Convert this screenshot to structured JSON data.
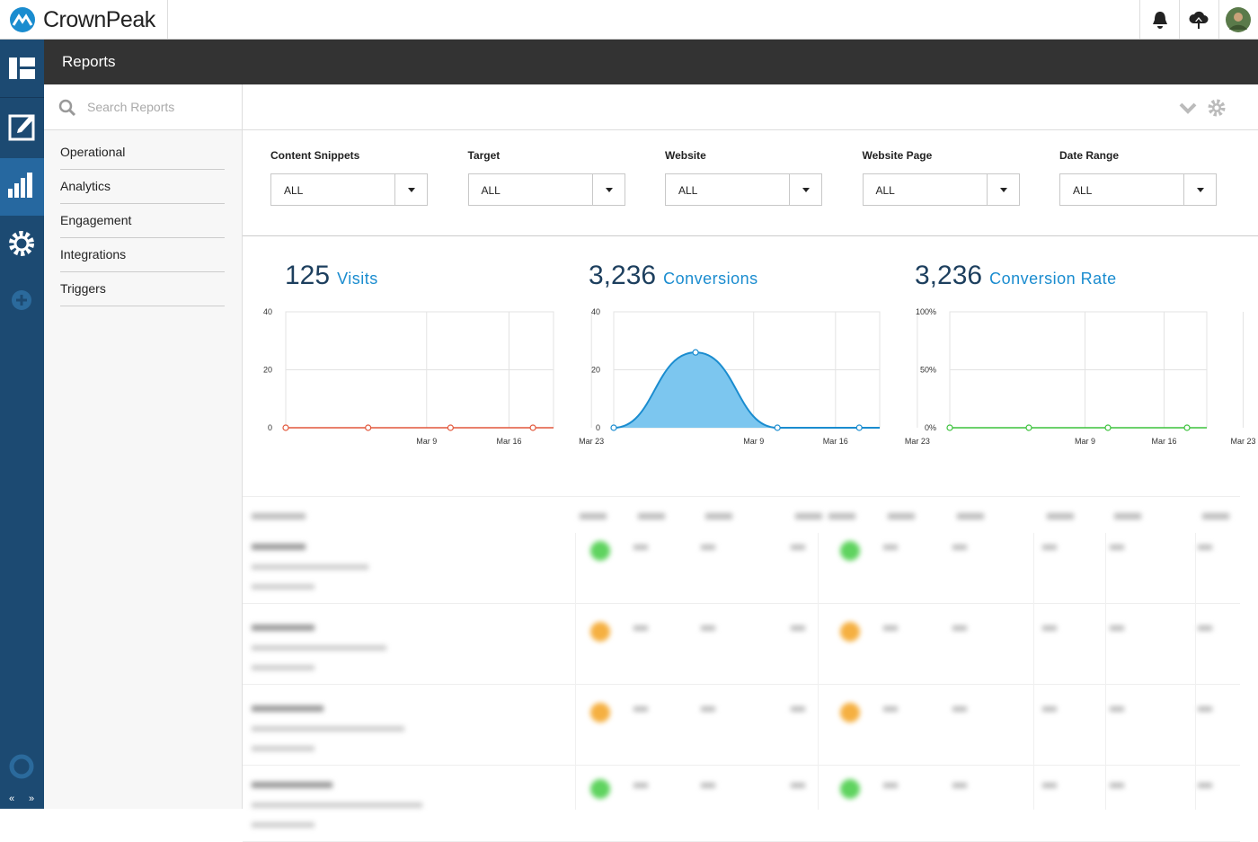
{
  "brand": "CrownPeak",
  "header": {
    "title": "Reports"
  },
  "search": {
    "placeholder": "Search Reports"
  },
  "nav": [
    "Operational",
    "Analytics",
    "Engagement",
    "Integrations",
    "Triggers"
  ],
  "filters": [
    {
      "label": "Content Snippets",
      "value": "ALL"
    },
    {
      "label": "Target",
      "value": "ALL"
    },
    {
      "label": "Website",
      "value": "ALL"
    },
    {
      "label": "Website Page",
      "value": "ALL"
    },
    {
      "label": "Date Range",
      "value": "ALL"
    }
  ],
  "chart_data": [
    {
      "type": "line",
      "headline": "125",
      "title": "Visits",
      "color": "#e2573b",
      "categories": [
        null,
        "Mar 9",
        "Mar 16",
        "Mar 23"
      ],
      "values": [
        0,
        0,
        0,
        0
      ],
      "ylim": [
        0,
        40
      ],
      "yticks": [
        0,
        20,
        40
      ],
      "grid": true
    },
    {
      "type": "area",
      "headline": "3,236",
      "title": "Conversions",
      "color": "#1a8ccf",
      "fill": "#7cc6ef",
      "categories": [
        null,
        "Mar 9",
        "Mar 16",
        "Mar 23"
      ],
      "values": [
        0,
        26,
        0,
        0
      ],
      "ylim": [
        0,
        40
      ],
      "yticks": [
        0,
        20,
        40
      ],
      "grid": true
    },
    {
      "type": "line",
      "headline": "3,236",
      "title": "Conversion Rate",
      "color": "#3cc23c",
      "categories": [
        null,
        "Mar 9",
        "Mar 16",
        "Mar 23"
      ],
      "values": [
        0,
        0,
        0,
        0
      ],
      "ylim": [
        0,
        100
      ],
      "yticks": [
        {
          "value": 0,
          "label": "0%"
        },
        {
          "value": 50,
          "label": "50%"
        },
        {
          "value": 100,
          "label": "100%"
        }
      ],
      "grid": true
    }
  ]
}
